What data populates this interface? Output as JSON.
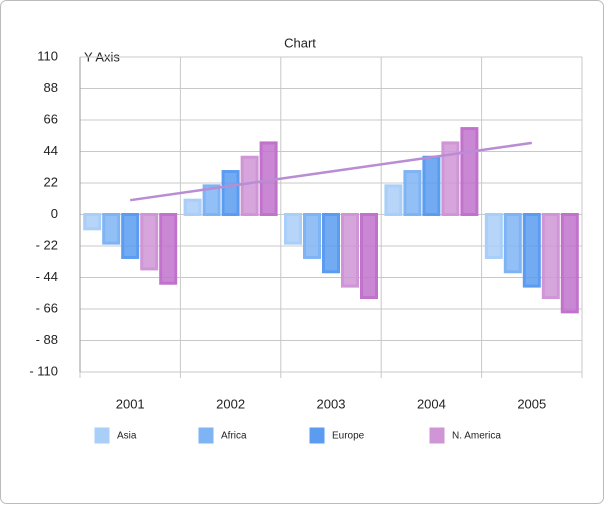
{
  "chart_data": {
    "type": "bar",
    "title": "Chart",
    "y_label": "Y Axis",
    "categories": [
      "2001",
      "2002",
      "2003",
      "2004",
      "2005"
    ],
    "series": [
      {
        "name": "Asia",
        "color": "#a9cef8",
        "values": [
          -10,
          10,
          -20,
          20,
          -30
        ]
      },
      {
        "name": "Africa",
        "color": "#7eb4f4",
        "values": [
          -20,
          20,
          -30,
          30,
          -40
        ]
      },
      {
        "name": "Europe",
        "color": "#5b9cf1",
        "values": [
          -30,
          30,
          -40,
          40,
          -50
        ]
      },
      {
        "name": "N. America",
        "color": "#cf95d6",
        "values": [
          -38,
          40,
          -50,
          50,
          -58
        ]
      },
      {
        "color": "#c173cc",
        "values": [
          -48,
          50,
          -58,
          60,
          -68
        ]
      },
      {
        "type": "line",
        "color": "#b98cd3",
        "values": [
          10,
          20,
          30,
          40,
          50
        ]
      }
    ],
    "ylim": [
      -110,
      110
    ],
    "yticks": [
      {
        "value": -110,
        "label": "- 110"
      },
      {
        "value": -88,
        "label": "- 88"
      },
      {
        "value": -66,
        "label": "- 66"
      },
      {
        "value": -44,
        "label": "- 44"
      },
      {
        "value": -22,
        "label": "- 22"
      },
      0,
      22,
      44,
      66,
      88,
      110
    ],
    "grid": true
  }
}
